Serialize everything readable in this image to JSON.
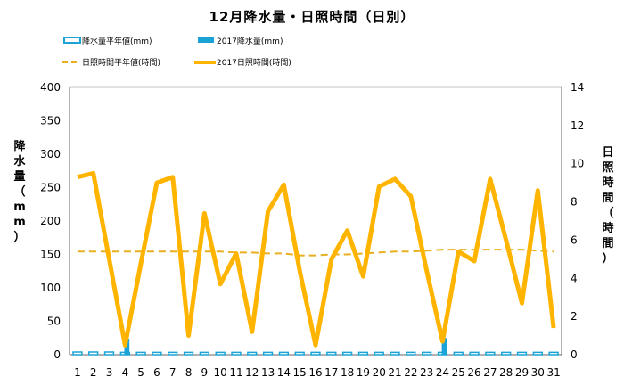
{
  "chart_data": {
    "type": "bar+line",
    "title": "12月降水量・日照時間（日別）",
    "x_categories": [
      "1",
      "2",
      "3",
      "4",
      "5",
      "6",
      "7",
      "8",
      "9",
      "10",
      "11",
      "12",
      "13",
      "14",
      "15",
      "16",
      "17",
      "18",
      "19",
      "20",
      "21",
      "22",
      "23",
      "24",
      "25",
      "26",
      "27",
      "28",
      "29",
      "30",
      "31"
    ],
    "y_left": {
      "label": "降水量（mm）",
      "range": [
        0,
        400
      ],
      "ticks": [
        "0",
        "50",
        "100",
        "150",
        "200",
        "250",
        "300",
        "350",
        "400"
      ]
    },
    "y_right": {
      "label": "日照時間（時間）",
      "range": [
        0,
        14
      ],
      "ticks": [
        "0",
        "2",
        "4",
        "6",
        "8",
        "10",
        "12",
        "14"
      ]
    },
    "series": [
      {
        "name": "降水量平年値(mm)",
        "kind": "bar-outline",
        "axis": "left",
        "color": "#1aa3d6",
        "values": [
          4,
          4,
          4,
          3.5,
          3.5,
          3.5,
          3.5,
          3.5,
          3.5,
          3.5,
          3.5,
          3.5,
          3.5,
          3.5,
          3.5,
          3.5,
          3.5,
          3.5,
          3.5,
          3.5,
          3.5,
          3.5,
          3.5,
          3.5,
          3.5,
          3.5,
          3.5,
          3.5,
          3.5,
          3.5,
          3.5
        ]
      },
      {
        "name": "2017降水量(mm)",
        "kind": "bar",
        "axis": "left",
        "color": "#1aa3d6",
        "values": [
          0,
          0,
          0,
          24,
          0,
          0,
          0,
          0,
          0,
          0,
          0,
          0,
          0,
          0,
          0,
          0,
          0,
          0,
          0,
          0,
          0,
          0,
          0,
          25,
          0,
          0,
          0,
          0,
          0,
          0,
          0
        ]
      },
      {
        "name": "日照時間平年値(時間)",
        "kind": "line-dashed",
        "axis": "right",
        "color": "#e8b020",
        "values": [
          5.4,
          5.4,
          5.4,
          5.4,
          5.4,
          5.4,
          5.4,
          5.4,
          5.4,
          5.4,
          5.35,
          5.35,
          5.3,
          5.3,
          5.2,
          5.2,
          5.25,
          5.25,
          5.3,
          5.35,
          5.4,
          5.4,
          5.45,
          5.5,
          5.5,
          5.5,
          5.5,
          5.5,
          5.5,
          5.45,
          5.4
        ]
      },
      {
        "name": "2017日照時間(時間)",
        "kind": "line",
        "axis": "right",
        "color": "#ffb400",
        "values": [
          9.3,
          9.5,
          5.0,
          0.5,
          4.8,
          9.0,
          9.3,
          1.0,
          7.4,
          3.7,
          5.3,
          1.2,
          7.5,
          8.9,
          4.4,
          0.5,
          5.0,
          6.5,
          4.1,
          8.8,
          9.2,
          8.3,
          4.4,
          0.7,
          5.4,
          4.9,
          9.2,
          6.0,
          2.7,
          8.6,
          1.4
        ]
      }
    ],
    "legend_placement": "top",
    "grid": false
  }
}
